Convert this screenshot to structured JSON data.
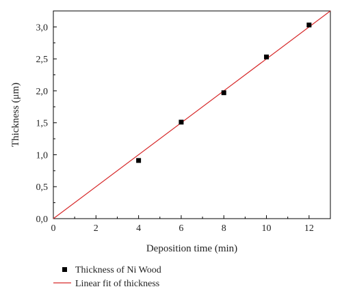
{
  "chart_data": {
    "type": "scatter",
    "xlabel": "Deposition time (min)",
    "ylabel": "Thickness (μm)",
    "xlim": [
      0,
      13
    ],
    "ylim": [
      0,
      3.25
    ],
    "xticks": [
      0,
      2,
      4,
      6,
      8,
      10,
      12
    ],
    "yticks": [
      0.0,
      0.5,
      1.0,
      1.5,
      2.0,
      2.5,
      3.0
    ],
    "xtick_labels": [
      "0",
      "2",
      "4",
      "6",
      "8",
      "10",
      "12"
    ],
    "ytick_labels": [
      "0,0",
      "0,5",
      "1,0",
      "1,5",
      "2,0",
      "2,5",
      "3,0"
    ],
    "grid": false,
    "legend_position": "bottom-left, below plot",
    "series": [
      {
        "name": "Thickness of Ni Wood",
        "kind": "scatter",
        "marker": "square",
        "color": "#000000",
        "x": [
          4,
          6,
          8,
          10,
          12
        ],
        "y": [
          0.91,
          1.51,
          1.97,
          2.53,
          3.03
        ]
      },
      {
        "name": "Linear fit of thickness",
        "kind": "line",
        "color": "#d62728",
        "x": [
          0,
          13
        ],
        "y": [
          0,
          3.25
        ]
      }
    ]
  }
}
